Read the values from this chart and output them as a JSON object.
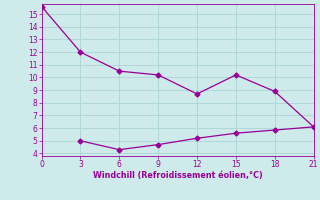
{
  "line1_x": [
    0,
    3,
    6,
    9,
    12,
    15,
    18,
    21
  ],
  "line1_y": [
    15.6,
    12.0,
    10.5,
    10.2,
    8.7,
    10.2,
    8.9,
    6.1
  ],
  "line2_x": [
    3,
    6,
    9,
    12,
    15,
    18,
    21
  ],
  "line2_y": [
    5.0,
    4.3,
    4.7,
    5.2,
    5.6,
    5.85,
    6.1
  ],
  "line_color": "#990099",
  "bg_color": "#ceeaea",
  "grid_color": "#b0d8d8",
  "xlabel": "Windchill (Refroidissement éolien,°C)",
  "xlabel_color": "#990099",
  "tick_color": "#990099",
  "xlim": [
    0,
    21
  ],
  "ylim": [
    3.8,
    15.8
  ],
  "xticks": [
    0,
    3,
    6,
    9,
    12,
    15,
    18,
    21
  ],
  "yticks": [
    4,
    5,
    6,
    7,
    8,
    9,
    10,
    11,
    12,
    13,
    14,
    15
  ],
  "marker": "D",
  "markersize": 2.5,
  "linewidth": 0.9
}
